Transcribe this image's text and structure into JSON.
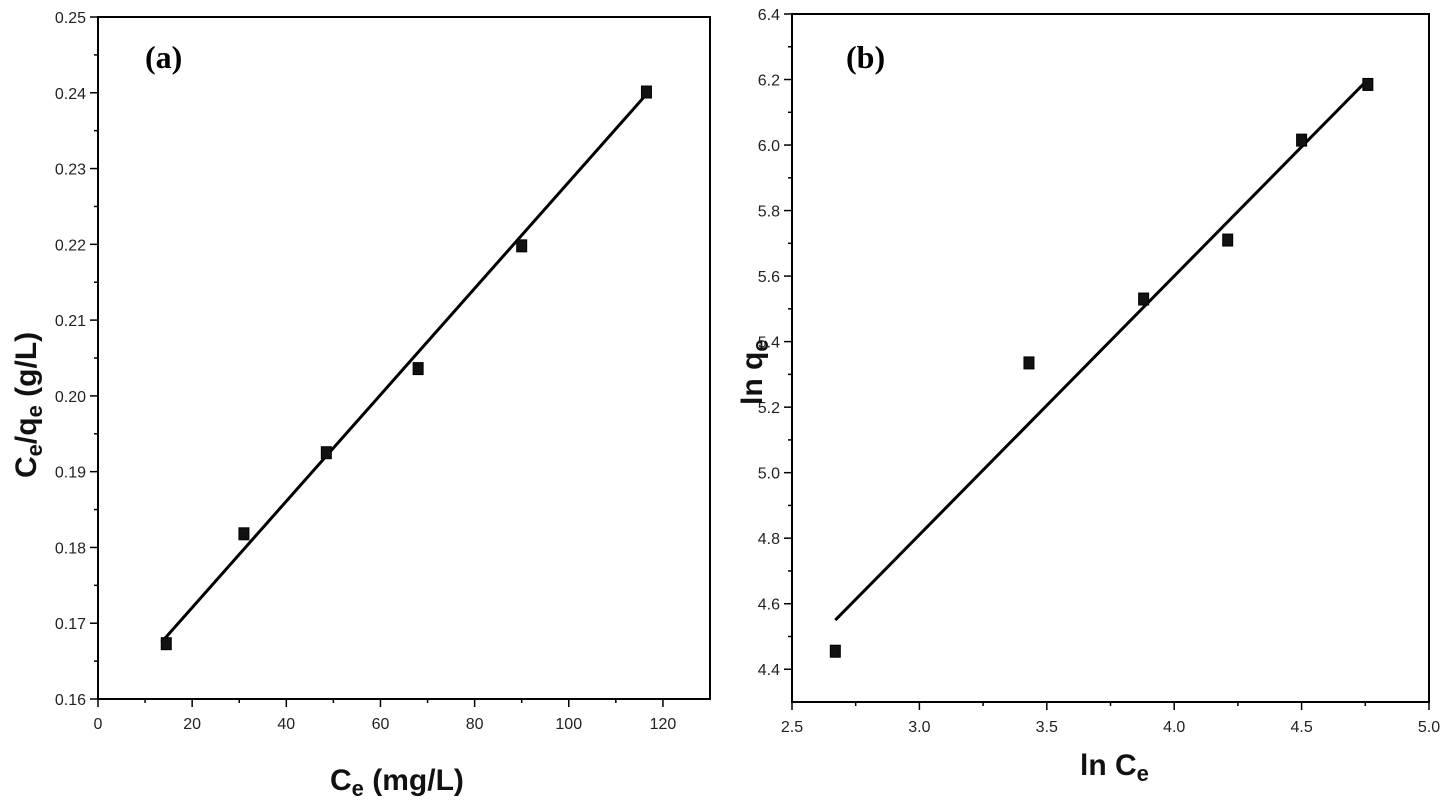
{
  "chart_data": [
    {
      "panel": "(a)",
      "type": "scatter",
      "xlabel": "Ce (mg/L)",
      "ylabel": "Ce/qe (g/L)",
      "xlabel_main": "C",
      "xlabel_sub": "e",
      "xlabel_rest": " (mg/L)",
      "ylabel_c": "C",
      "ylabel_sub1": "e",
      "ylabel_mid": "/q",
      "ylabel_sub2": "e",
      "ylabel_rest": " (g/L)",
      "xlim": [
        0,
        130
      ],
      "ylim": [
        0.16,
        0.25
      ],
      "xticks": [
        0,
        20,
        40,
        60,
        80,
        100,
        120
      ],
      "xtick_labels": [
        "0",
        "20",
        "40",
        "60",
        "80",
        "100",
        "120"
      ],
      "yticks": [
        0.16,
        0.17,
        0.18,
        0.19,
        0.2,
        0.21,
        0.22,
        0.23,
        0.24,
        0.25
      ],
      "ytick_labels": [
        "0.16",
        "0.17",
        "0.18",
        "0.19",
        "0.20",
        "0.21",
        "0.22",
        "0.23",
        "0.24",
        "0.25"
      ],
      "points": [
        {
          "x": 14.5,
          "y": 0.1673
        },
        {
          "x": 31.0,
          "y": 0.1818
        },
        {
          "x": 48.5,
          "y": 0.1925
        },
        {
          "x": 68.0,
          "y": 0.2036
        },
        {
          "x": 90.0,
          "y": 0.2198
        },
        {
          "x": 116.5,
          "y": 0.2401
        }
      ],
      "fit": {
        "x1": 13.5,
        "y1": 0.1675,
        "x2": 116.5,
        "y2": 0.2398
      }
    },
    {
      "panel": "(b)",
      "type": "scatter",
      "xlabel": "ln Ce",
      "ylabel": "ln qe",
      "xlabel_main": "ln C",
      "xlabel_sub": "e",
      "ylabel_main": "ln q",
      "ylabel_sub": "e",
      "xlim": [
        2.5,
        5.0
      ],
      "ylim": [
        4.3,
        6.4
      ],
      "xticks": [
        2.5,
        3.0,
        3.5,
        4.0,
        4.5,
        5.0
      ],
      "xtick_labels": [
        "2.5",
        "3.0",
        "3.5",
        "4.0",
        "4.5",
        "5.0"
      ],
      "yticks": [
        4.4,
        4.6,
        4.8,
        5.0,
        5.2,
        5.4,
        5.6,
        5.8,
        6.0,
        6.2,
        6.4
      ],
      "ytick_labels": [
        "4.4",
        "4.6",
        "4.8",
        "5.0",
        "5.2",
        "5.4",
        "5.6",
        "5.8",
        "6.0",
        "6.2",
        "6.4"
      ],
      "points": [
        {
          "x": 2.67,
          "y": 4.455
        },
        {
          "x": 3.43,
          "y": 5.335
        },
        {
          "x": 3.88,
          "y": 5.53
        },
        {
          "x": 4.21,
          "y": 5.71
        },
        {
          "x": 4.5,
          "y": 6.015
        },
        {
          "x": 4.76,
          "y": 6.185
        }
      ],
      "fit": {
        "x1": 2.67,
        "y1": 4.55,
        "x2": 4.76,
        "y2": 6.2
      }
    }
  ]
}
